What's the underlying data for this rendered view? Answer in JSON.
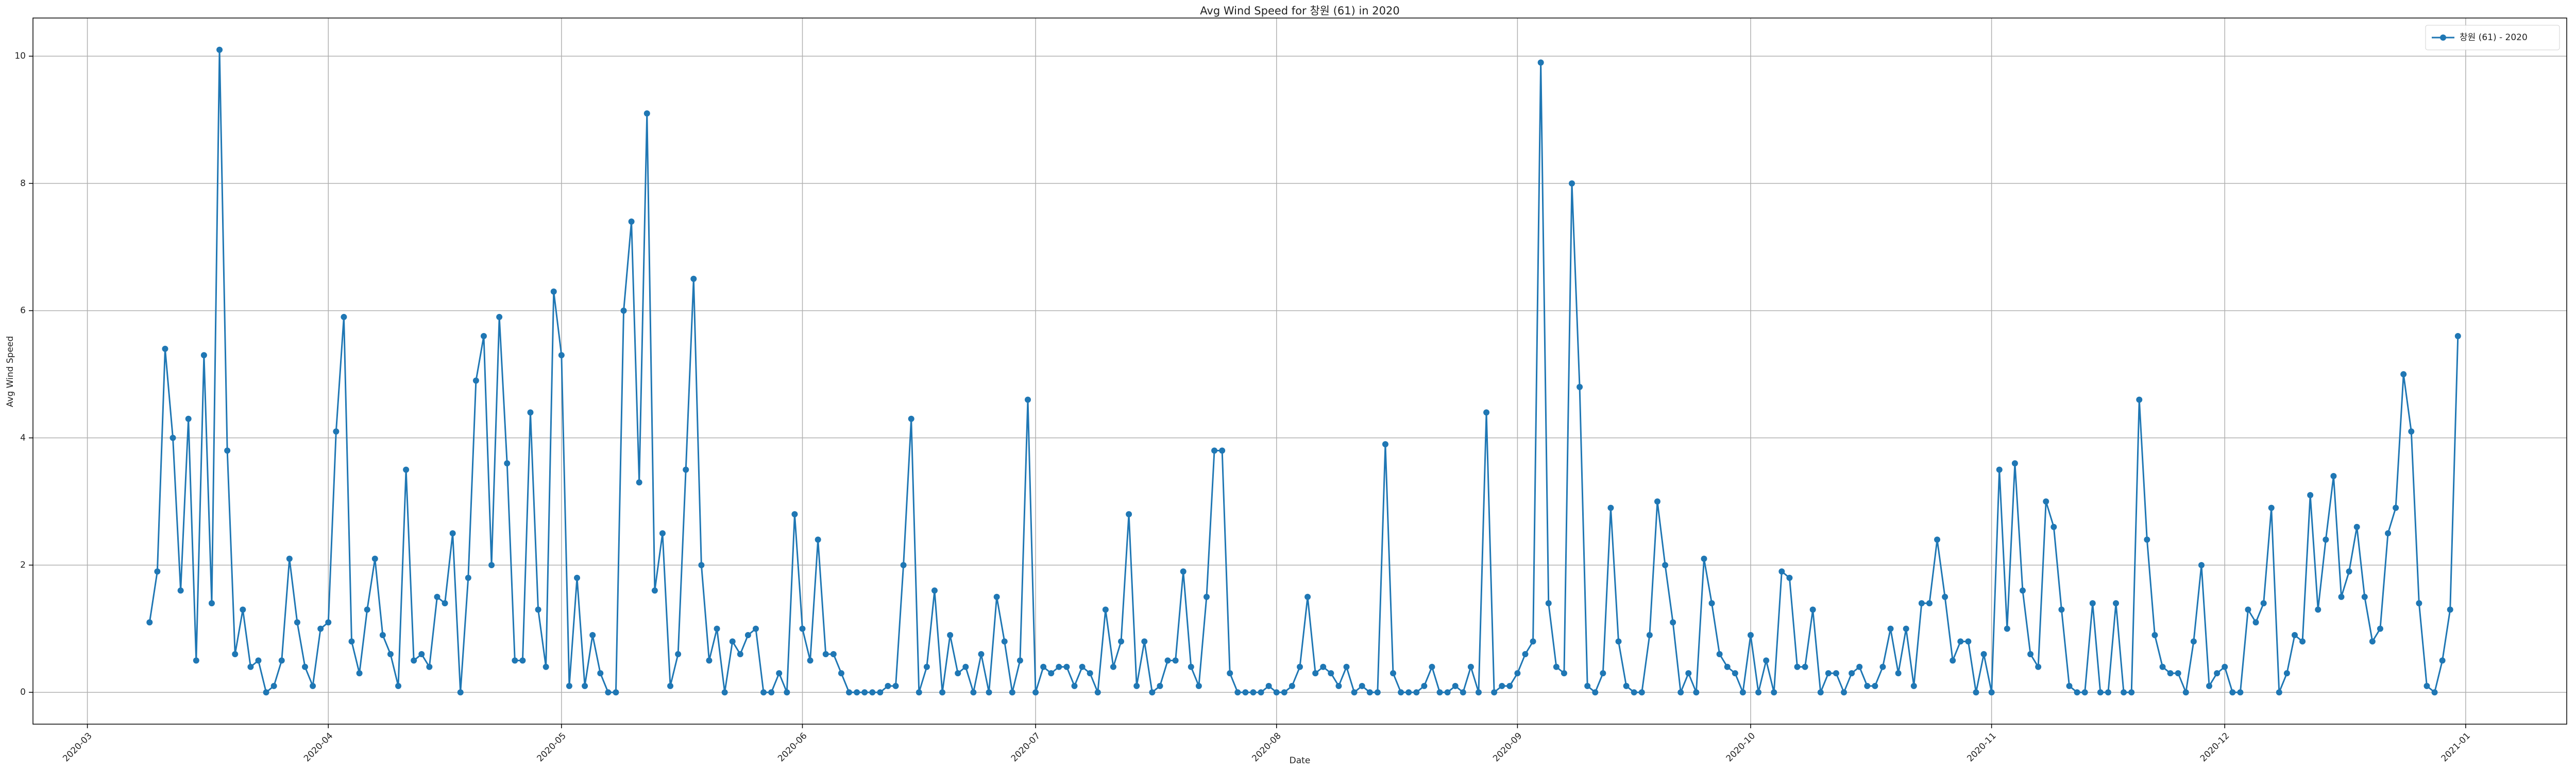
{
  "chart_data": {
    "type": "line",
    "title": "Avg Wind Speed for 창원 (61) in 2020",
    "xlabel": "Date",
    "ylabel": "Avg Wind Speed",
    "grid": true,
    "legend": "upper right",
    "x": [
      "2020-03-09",
      "2020-03-10",
      "2020-03-11",
      "2020-03-12",
      "2020-03-13",
      "2020-03-14",
      "2020-03-15",
      "2020-03-16",
      "2020-03-17",
      "2020-03-18",
      "2020-03-19",
      "2020-03-20",
      "2020-03-21",
      "2020-03-22",
      "2020-03-23",
      "2020-03-24",
      "2020-03-25",
      "2020-03-26",
      "2020-03-27",
      "2020-03-28",
      "2020-03-29",
      "2020-03-30",
      "2020-03-31",
      "2020-04-01",
      "2020-04-02",
      "2020-04-03",
      "2020-04-04",
      "2020-04-05",
      "2020-04-06",
      "2020-04-07",
      "2020-04-08",
      "2020-04-09",
      "2020-04-10",
      "2020-04-11",
      "2020-04-12",
      "2020-04-13",
      "2020-04-14",
      "2020-04-15",
      "2020-04-16",
      "2020-04-17",
      "2020-04-18",
      "2020-04-19",
      "2020-04-20",
      "2020-04-21",
      "2020-04-22",
      "2020-04-23",
      "2020-04-24",
      "2020-04-25",
      "2020-04-26",
      "2020-04-27",
      "2020-04-28",
      "2020-04-29",
      "2020-04-30",
      "2020-05-01",
      "2020-05-02",
      "2020-05-03",
      "2020-05-04",
      "2020-05-05",
      "2020-05-06",
      "2020-05-07",
      "2020-05-08",
      "2020-05-09",
      "2020-05-10",
      "2020-05-11",
      "2020-05-12",
      "2020-05-13",
      "2020-05-14",
      "2020-05-15",
      "2020-05-16",
      "2020-05-17",
      "2020-05-18",
      "2020-05-19",
      "2020-05-20",
      "2020-05-21",
      "2020-05-22",
      "2020-05-23",
      "2020-05-24",
      "2020-05-25",
      "2020-05-26",
      "2020-05-27",
      "2020-05-28",
      "2020-05-29",
      "2020-05-30",
      "2020-05-31",
      "2020-06-01",
      "2020-06-02",
      "2020-06-03",
      "2020-06-04",
      "2020-06-05",
      "2020-06-06",
      "2020-06-07",
      "2020-06-08",
      "2020-06-09",
      "2020-06-10",
      "2020-06-11",
      "2020-06-12",
      "2020-06-13",
      "2020-06-14",
      "2020-06-15",
      "2020-06-16",
      "2020-06-17",
      "2020-06-18",
      "2020-06-19",
      "2020-06-20",
      "2020-06-21",
      "2020-06-22",
      "2020-06-23",
      "2020-06-24",
      "2020-06-25",
      "2020-06-26",
      "2020-06-27",
      "2020-06-28",
      "2020-06-29",
      "2020-06-30",
      "2020-07-01",
      "2020-07-02",
      "2020-07-03",
      "2020-07-04",
      "2020-07-05",
      "2020-07-06",
      "2020-07-07",
      "2020-07-08",
      "2020-07-09",
      "2020-07-10",
      "2020-07-11",
      "2020-07-12",
      "2020-07-13",
      "2020-07-14",
      "2020-07-15",
      "2020-07-16",
      "2020-07-17",
      "2020-07-18",
      "2020-07-19",
      "2020-07-20",
      "2020-07-21",
      "2020-07-22",
      "2020-07-23",
      "2020-07-24",
      "2020-07-25",
      "2020-07-26",
      "2020-07-27",
      "2020-07-28",
      "2020-07-29",
      "2020-07-30",
      "2020-07-31",
      "2020-08-01",
      "2020-08-02",
      "2020-08-03",
      "2020-08-04",
      "2020-08-05",
      "2020-08-06",
      "2020-08-07",
      "2020-08-08",
      "2020-08-09",
      "2020-08-10",
      "2020-08-11",
      "2020-08-12",
      "2020-08-13",
      "2020-08-14",
      "2020-08-15",
      "2020-08-16",
      "2020-08-17",
      "2020-08-18",
      "2020-08-19",
      "2020-08-20",
      "2020-08-21",
      "2020-08-22",
      "2020-08-23",
      "2020-08-24",
      "2020-08-25",
      "2020-08-26",
      "2020-08-27",
      "2020-08-28",
      "2020-08-29",
      "2020-08-30",
      "2020-08-31",
      "2020-09-01",
      "2020-09-02",
      "2020-09-03",
      "2020-09-04",
      "2020-09-05",
      "2020-09-06",
      "2020-09-07",
      "2020-09-08",
      "2020-09-09",
      "2020-09-10",
      "2020-09-11",
      "2020-09-12",
      "2020-09-13",
      "2020-09-14",
      "2020-09-15",
      "2020-09-16",
      "2020-09-17",
      "2020-09-18",
      "2020-09-19",
      "2020-09-20",
      "2020-09-21",
      "2020-09-22",
      "2020-09-23",
      "2020-09-24",
      "2020-09-25",
      "2020-09-26",
      "2020-09-27",
      "2020-09-28",
      "2020-09-29",
      "2020-09-30",
      "2020-10-01",
      "2020-10-02",
      "2020-10-03",
      "2020-10-04",
      "2020-10-05",
      "2020-10-06",
      "2020-10-07",
      "2020-10-08",
      "2020-10-09",
      "2020-10-10",
      "2020-10-11",
      "2020-10-12",
      "2020-10-13",
      "2020-10-14",
      "2020-10-15",
      "2020-10-16",
      "2020-10-17",
      "2020-10-18",
      "2020-10-19",
      "2020-10-20",
      "2020-10-21",
      "2020-10-22",
      "2020-10-23",
      "2020-10-24",
      "2020-10-25",
      "2020-10-26",
      "2020-10-27",
      "2020-10-28",
      "2020-10-29",
      "2020-10-30",
      "2020-10-31",
      "2020-11-01",
      "2020-11-02",
      "2020-11-03",
      "2020-11-04",
      "2020-11-05",
      "2020-11-06",
      "2020-11-07",
      "2020-11-08",
      "2020-11-09",
      "2020-11-10",
      "2020-11-11",
      "2020-11-12",
      "2020-11-13",
      "2020-11-14",
      "2020-11-15",
      "2020-11-16",
      "2020-11-17",
      "2020-11-18",
      "2020-11-19",
      "2020-11-20",
      "2020-11-21",
      "2020-11-22",
      "2020-11-23",
      "2020-11-24",
      "2020-11-25",
      "2020-11-26",
      "2020-11-27",
      "2020-11-28",
      "2020-11-29",
      "2020-11-30",
      "2020-12-01",
      "2020-12-02",
      "2020-12-03",
      "2020-12-04",
      "2020-12-05",
      "2020-12-06",
      "2020-12-07",
      "2020-12-08",
      "2020-12-09",
      "2020-12-10",
      "2020-12-11",
      "2020-12-12",
      "2020-12-13",
      "2020-12-14",
      "2020-12-15",
      "2020-12-16",
      "2020-12-17",
      "2020-12-18",
      "2020-12-19",
      "2020-12-20",
      "2020-12-21",
      "2020-12-22",
      "2020-12-23",
      "2020-12-24",
      "2020-12-25",
      "2020-12-26",
      "2020-12-27",
      "2020-12-28",
      "2020-12-29",
      "2020-12-30",
      "2020-12-31"
    ],
    "series": [
      {
        "name": "창원 (61) - 2020",
        "color": "#1f77b4",
        "values": [
          1.1,
          1.9,
          5.4,
          4.0,
          1.6,
          4.3,
          0.5,
          5.3,
          1.4,
          10.1,
          3.8,
          0.6,
          1.3,
          0.4,
          0.5,
          0.0,
          0.1,
          0.5,
          2.1,
          1.1,
          0.4,
          0.1,
          1.0,
          1.1,
          4.1,
          5.9,
          0.8,
          0.3,
          1.3,
          2.1,
          0.9,
          0.6,
          0.1,
          3.5,
          0.5,
          0.6,
          0.4,
          1.5,
          1.4,
          2.5,
          0.0,
          1.8,
          4.9,
          5.6,
          2.0,
          5.9,
          3.6,
          0.5,
          0.5,
          4.4,
          1.3,
          0.4,
          6.3,
          5.3,
          0.1,
          1.8,
          0.1,
          0.9,
          0.3,
          0.0,
          0.0,
          6.0,
          7.4,
          3.3,
          9.1,
          1.6,
          2.5,
          0.1,
          0.6,
          3.5,
          6.5,
          2.0,
          0.5,
          1.0,
          0.0,
          0.8,
          0.6,
          0.9,
          1.0,
          0.0,
          0.0,
          0.3,
          0.0,
          2.8,
          1.0,
          0.5,
          2.4,
          0.6,
          0.6,
          0.3,
          0.0,
          0.0,
          0.0,
          0.0,
          0.0,
          0.1,
          0.1,
          2.0,
          4.3,
          0.0,
          0.4,
          1.6,
          0.0,
          0.9,
          0.3,
          0.4,
          0.0,
          0.6,
          0.0,
          1.5,
          0.8,
          0.0,
          0.5,
          4.6,
          0.0,
          0.4,
          0.3,
          0.4,
          0.4,
          0.1,
          0.4,
          0.3,
          0.0,
          1.3,
          0.4,
          0.8,
          2.8,
          0.1,
          0.8,
          0.0,
          0.1,
          0.5,
          0.5,
          1.9,
          0.4,
          0.1,
          1.5,
          3.8,
          3.8,
          0.3,
          0.0,
          0.0,
          0.0,
          0.0,
          0.1,
          0.0,
          0.0,
          0.1,
          0.4,
          1.5,
          0.3,
          0.4,
          0.3,
          0.1,
          0.4,
          0.0,
          0.1,
          0.0,
          0.0,
          3.9,
          0.3,
          0.0,
          0.0,
          0.0,
          0.1,
          0.4,
          0.0,
          0.0,
          0.1,
          0.0,
          0.4,
          0.0,
          4.4,
          0.0,
          0.1,
          0.1,
          0.3,
          0.6,
          0.8,
          9.9,
          1.4,
          0.4,
          0.3,
          8.0,
          4.8,
          0.1,
          0.0,
          0.3,
          2.9,
          0.8,
          0.1,
          0.0,
          0.0,
          0.9,
          3.0,
          2.0,
          1.1,
          0.0,
          0.3,
          0.0,
          2.1,
          1.4,
          0.6,
          0.4,
          0.3,
          0.0,
          0.9,
          0.0,
          0.5,
          0.0,
          1.9,
          1.8,
          0.4,
          0.4,
          1.3,
          0.0,
          0.3,
          0.3,
          0.0,
          0.3,
          0.4,
          0.1,
          0.1,
          0.4,
          1.0,
          0.3,
          1.0,
          0.1,
          1.4,
          1.4,
          2.4,
          1.5,
          0.5,
          0.8,
          0.8,
          0.0,
          0.6,
          0.0,
          3.5,
          1.0,
          3.6,
          1.6,
          0.6,
          0.4,
          3.0,
          2.6,
          1.3,
          0.1,
          0.0,
          0.0,
          1.4,
          0.0,
          0.0,
          1.4,
          0.0,
          0.0,
          4.6,
          2.4,
          0.9,
          0.4,
          0.3,
          0.3,
          0.0,
          0.8,
          2.0,
          0.1,
          0.3,
          0.4,
          0.0,
          0.0,
          1.3,
          1.1,
          1.4,
          2.9,
          0.0,
          0.3,
          0.9,
          0.8,
          3.1,
          1.3,
          2.4,
          3.4,
          1.5,
          1.9,
          2.6,
          1.5,
          0.8,
          1.0,
          2.5,
          2.9,
          5.0,
          4.1,
          1.4,
          0.1,
          0.0,
          0.5,
          1.3,
          5.6
        ]
      }
    ],
    "xlim": [
      "2020-02-23",
      "2021-01-14"
    ],
    "xticks": [
      "2020-03",
      "2020-04",
      "2020-05",
      "2020-06",
      "2020-07",
      "2020-08",
      "2020-09",
      "2020-10",
      "2020-11",
      "2020-12",
      "2021-01"
    ],
    "ylim": [
      -0.5,
      10.6
    ],
    "yticks": [
      0,
      2,
      4,
      6,
      8,
      10
    ]
  }
}
